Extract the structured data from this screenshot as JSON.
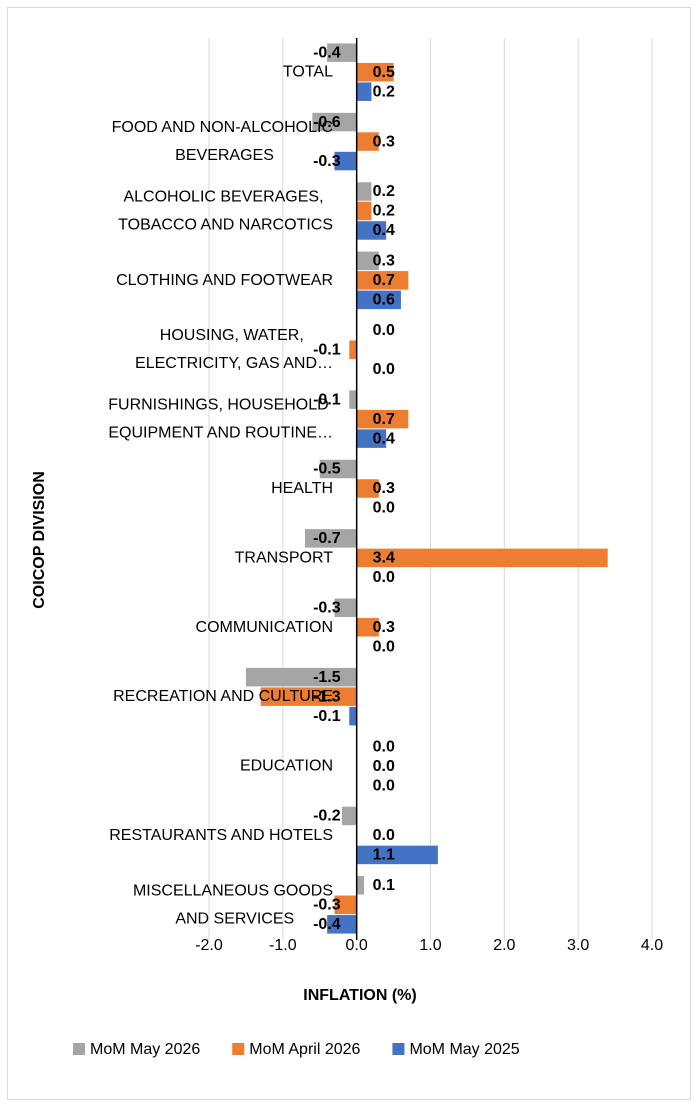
{
  "chart_data": {
    "type": "hbar",
    "categories": [
      "TOTAL",
      "FOOD AND NON-ALCOHOLIC BEVERAGES",
      "ALCOHOLIC BEVERAGES, TOBACCO AND NARCOTICS",
      "CLOTHING AND FOOTWEAR",
      "HOUSING, WATER, ELECTRICITY, GAS AND…",
      "FURNISHINGS, HOUSEHOLD EQUIPMENT AND ROUTINE…",
      "HEALTH",
      "TRANSPORT",
      "COMMUNICATION",
      "RECREATION AND CULTURE",
      "EDUCATION",
      "RESTAURANTS AND HOTELS",
      "MISCELLANEOUS GOODS AND SERVICES"
    ],
    "series": [
      {
        "name": "MoM May 2026",
        "color": "#a5a5a5",
        "values": [
          -0.4,
          -0.6,
          0.2,
          0.3,
          0.0,
          -0.1,
          -0.5,
          -0.7,
          -0.3,
          -1.5,
          0.0,
          -0.2,
          0.1
        ],
        "value_labels": [
          "-0.4",
          "-0.6",
          "0.2",
          "0.3",
          "0.0",
          "-0.1",
          "-0.5",
          "-0.7",
          "-0.3",
          "-1.5",
          "0.0",
          "-0.2",
          "0.1"
        ]
      },
      {
        "name": "MoM April 2026",
        "color": "#ed7d31",
        "values": [
          0.5,
          0.3,
          0.2,
          0.7,
          -0.1,
          0.7,
          0.3,
          3.4,
          0.3,
          -1.3,
          0.0,
          0.0,
          -0.3
        ],
        "value_labels": [
          "0.5",
          "0.3",
          "0.2",
          "0.7",
          "-0.1",
          "0.7",
          "0.3",
          "3.4",
          "0.3",
          "-1.3",
          "0.0",
          "0.0",
          "-0.3"
        ]
      },
      {
        "name": "MoM May 2025",
        "color": "#4472c4",
        "values": [
          0.2,
          -0.3,
          0.4,
          0.6,
          0.0,
          0.4,
          0.0,
          0.0,
          0.0,
          -0.1,
          0.0,
          1.1,
          -0.4
        ],
        "value_labels": [
          "0.2",
          "-0.3",
          "0.4",
          "0.6",
          "0.0",
          "0.4",
          "0.0",
          "0.0",
          "0.0",
          "-0.1",
          "0.0",
          "1.1",
          "-0.4"
        ]
      }
    ],
    "xlim": [
      -2,
      4
    ],
    "xticks": [
      {
        "value": -2,
        "label": "-2.0"
      },
      {
        "value": -1,
        "label": "-1.0"
      },
      {
        "value": 0,
        "label": "0.0"
      },
      {
        "value": 1,
        "label": "1.0"
      },
      {
        "value": 2,
        "label": "2.0"
      },
      {
        "value": 3,
        "label": "3.0"
      },
      {
        "value": 4,
        "label": "4.0"
      }
    ],
    "x_label": "INFLATION (%)",
    "y_label": "COICOP DIVISION",
    "grid": true,
    "legend": "bottom"
  }
}
